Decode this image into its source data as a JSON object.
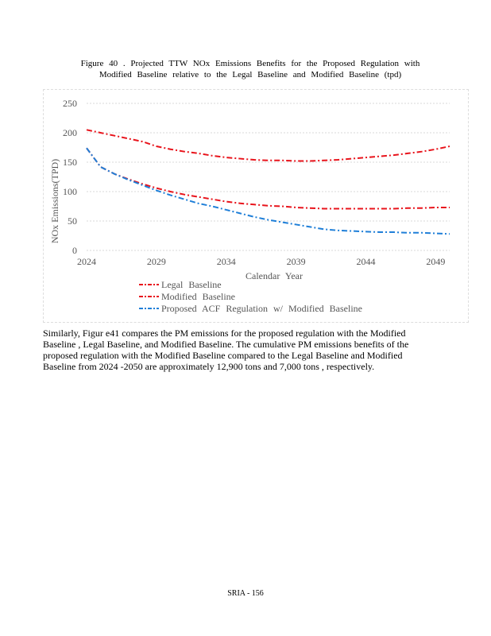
{
  "caption": {
    "line1": "Figure 40 . Projected TTW NOx Emissions Benefits for the Proposed Regulation with",
    "line2": "Modified Baseline relative to the Legal Baseline and Modified Baseline (tpd)"
  },
  "chart_data": {
    "type": "line",
    "xlabel": "Calendar Year",
    "ylabel": "NOx Emissions(TPD)",
    "xlim": [
      2024,
      2050
    ],
    "ylim": [
      0,
      250
    ],
    "xticks": [
      2024,
      2029,
      2034,
      2039,
      2044,
      2049
    ],
    "yticks": [
      0,
      50,
      100,
      150,
      200,
      250
    ],
    "grid": true,
    "legend_position": "bottom",
    "x": [
      2024,
      2025,
      2026,
      2027,
      2028,
      2029,
      2030,
      2031,
      2032,
      2033,
      2034,
      2035,
      2036,
      2037,
      2038,
      2039,
      2040,
      2041,
      2042,
      2043,
      2044,
      2045,
      2046,
      2047,
      2048,
      2049,
      2050
    ],
    "series": [
      {
        "name": "Legal Baseline",
        "color": "#e8141c",
        "values": [
          205,
          200,
          195,
          190,
          185,
          177,
          172,
          168,
          165,
          161,
          158,
          156,
          154,
          153,
          153,
          152,
          152,
          153,
          154,
          156,
          158,
          160,
          162,
          165,
          168,
          172,
          177
        ]
      },
      {
        "name": "Modified Baseline",
        "color": "#e8141c",
        "values": [
          174,
          142,
          130,
          121,
          113,
          106,
          100,
          95,
          91,
          87,
          83,
          80,
          78,
          76,
          75,
          73,
          72,
          71,
          71,
          71,
          71,
          71,
          71,
          72,
          72,
          73,
          73
        ]
      },
      {
        "name": "Proposed ACF Regulation w/ Modified Baseline",
        "color": "#1f7fd8",
        "values": [
          174,
          142,
          130,
          120,
          111,
          102,
          94,
          87,
          80,
          75,
          69,
          63,
          57,
          52,
          48,
          44,
          40,
          36,
          34,
          33,
          32,
          31,
          31,
          30,
          30,
          29,
          28
        ]
      }
    ]
  },
  "paragraph": "Similarly, Figur e41 compares the PM emissions for the proposed regulation with the Modified Baseline , Legal Baseline, and Modified Baseline. The cumulative PM emissions benefits of the proposed regulation with the Modified Baseline compared to the Legal Baseline and Modified Baseline from 2024 -2050 are approximately 12,900 tons and 7,000 tons , respectively.",
  "footer": "SRIA - 156"
}
